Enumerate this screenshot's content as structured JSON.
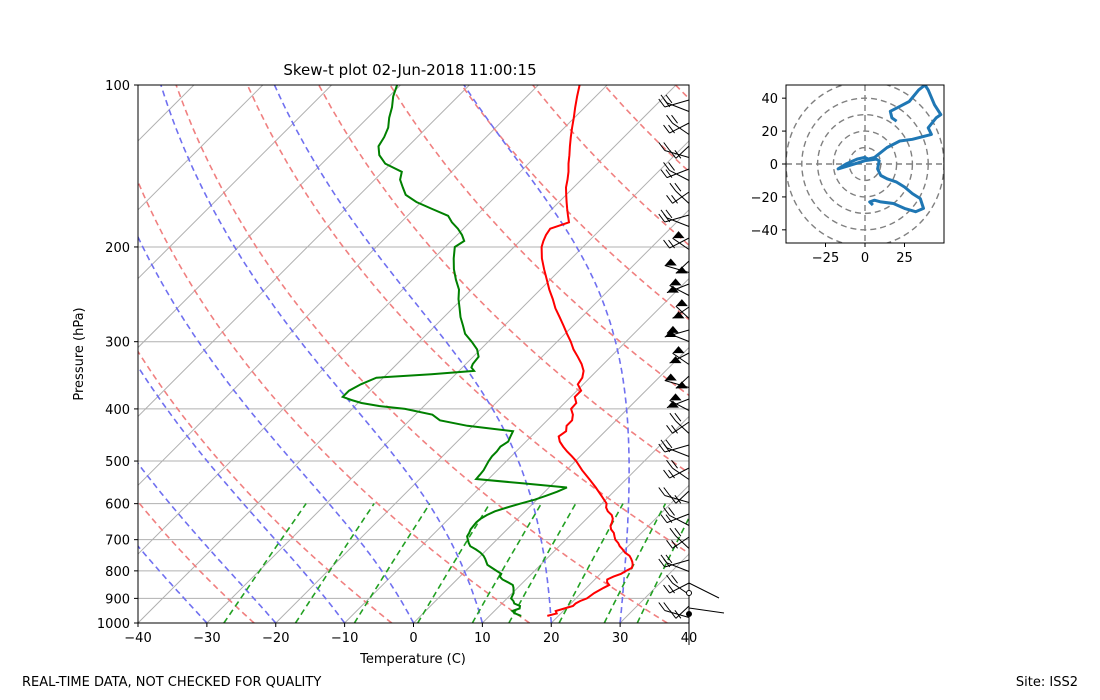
{
  "chart_data": [
    {
      "type": "line",
      "subtype": "skew-t log-p diagram",
      "title": "Skew-t plot 02-Jun-2018 11:00:15",
      "xlabel": "Temperature (C)",
      "ylabel": "Pressure (hPa)",
      "xlim": [
        -40,
        40
      ],
      "ylim": [
        1000,
        100
      ],
      "y_scale": "log",
      "x_ticks": [
        "−40",
        "−30",
        "−20",
        "−10",
        "0",
        "10",
        "20",
        "30",
        "40"
      ],
      "y_ticks": [
        "100",
        "200",
        "300",
        "400",
        "500",
        "600",
        "700",
        "800",
        "900",
        "1000"
      ],
      "grid": true,
      "series": [
        {
          "color": "#ff0000",
          "p": [
            970,
            960,
            950,
            940,
            930,
            920,
            910,
            900,
            880,
            860,
            850,
            840,
            830,
            820,
            810,
            800,
            790,
            780,
            770,
            760,
            750,
            740,
            730,
            720,
            710,
            700,
            690,
            680,
            670,
            660,
            650,
            640,
            630,
            620,
            610,
            600,
            580,
            560,
            540,
            520,
            500,
            490,
            480,
            470,
            460,
            450,
            440,
            430,
            420,
            410,
            400,
            390,
            380,
            370,
            360,
            350,
            340,
            330,
            320,
            310,
            300,
            290,
            280,
            270,
            260,
            250,
            240,
            230,
            220,
            210,
            200,
            195,
            190,
            185,
            180,
            175,
            170,
            165,
            160,
            155,
            150,
            145,
            140,
            135,
            130,
            125,
            120,
            115,
            110,
            105,
            100
          ],
          "t": [
            18.4,
            19.4,
            18.9,
            19.8,
            20.7,
            20.7,
            21.0,
            21.6,
            21.9,
            22.5,
            22.9,
            22.2,
            21.8,
            22.3,
            23.0,
            23.3,
            23.7,
            23.4,
            22.9,
            22.3,
            21.6,
            20.5,
            19.7,
            18.8,
            18.1,
            17.2,
            16.6,
            16.0,
            15.1,
            14.5,
            14.2,
            13.8,
            13.1,
            12.0,
            11.2,
            10.7,
            8.8,
            6.8,
            4.6,
            2.3,
            0.1,
            -1.2,
            -2.6,
            -3.9,
            -5.1,
            -6.0,
            -5.7,
            -6.4,
            -6.4,
            -7.1,
            -8.2,
            -8.3,
            -9.4,
            -9.4,
            -10.8,
            -11.1,
            -11.9,
            -13.2,
            -14.8,
            -16.5,
            -18.0,
            -19.7,
            -21.4,
            -23.2,
            -25.1,
            -26.8,
            -28.7,
            -30.5,
            -32.4,
            -34.3,
            -36.0,
            -36.6,
            -37.1,
            -37.4,
            -35.6,
            -36.7,
            -37.8,
            -38.9,
            -40.0,
            -41.1,
            -42.0,
            -43.0,
            -44.2,
            -45.3,
            -46.5,
            -47.7,
            -48.9,
            -50.1,
            -51.4,
            -52.7,
            -54.0
          ]
        },
        {
          "color": "#008000",
          "p": [
            970,
            960,
            950,
            940,
            930,
            920,
            910,
            900,
            880,
            860,
            850,
            840,
            830,
            820,
            810,
            800,
            790,
            780,
            770,
            760,
            750,
            740,
            730,
            720,
            710,
            700,
            690,
            680,
            670,
            660,
            650,
            640,
            630,
            620,
            610,
            600,
            590,
            580,
            570,
            560,
            550,
            540,
            530,
            520,
            510,
            500,
            490,
            480,
            470,
            460,
            450,
            440,
            430,
            420,
            410,
            400,
            395,
            390,
            385,
            380,
            370,
            360,
            350,
            345,
            340,
            335,
            330,
            320,
            310,
            300,
            290,
            280,
            270,
            260,
            250,
            240,
            230,
            220,
            210,
            200,
            195,
            190,
            185,
            180,
            175,
            170,
            165,
            160,
            155,
            150,
            145,
            140,
            135,
            130,
            125,
            120,
            115,
            110,
            105,
            100
          ],
          "t": [
            14.6,
            13.4,
            12.6,
            13.3,
            13.0,
            11.8,
            11.3,
            10.6,
            10.2,
            9.4,
            8.9,
            7.8,
            6.6,
            5.8,
            5.6,
            4.5,
            3.4,
            2.3,
            1.7,
            1.1,
            0.4,
            -0.5,
            -1.6,
            -2.9,
            -3.6,
            -4.2,
            -4.8,
            -5.0,
            -5.3,
            -5.4,
            -5.5,
            -5.4,
            -5.0,
            -4.4,
            -3.2,
            -1.8,
            -0.3,
            0.8,
            1.8,
            2.6,
            -4.5,
            -11.8,
            -11.9,
            -12.0,
            -12.3,
            -12.6,
            -12.8,
            -12.8,
            -13.0,
            -12.6,
            -13.0,
            -13.4,
            -20.8,
            -25.6,
            -27.5,
            -32.3,
            -36.5,
            -39.5,
            -41.4,
            -43.1,
            -43.1,
            -42.3,
            -41.0,
            -33.5,
            -27.8,
            -28.7,
            -29.0,
            -29.2,
            -30.5,
            -32.4,
            -34.5,
            -36.0,
            -37.6,
            -39.0,
            -40.5,
            -41.8,
            -43.7,
            -45.5,
            -47.1,
            -48.6,
            -48.1,
            -49.3,
            -50.8,
            -52.6,
            -54.1,
            -57.4,
            -60.7,
            -63.3,
            -64.8,
            -66.3,
            -67.2,
            -70.8,
            -72.9,
            -74.3,
            -74.8,
            -75.6,
            -76.9,
            -78.0,
            -79.4,
            -80.5
          ]
        }
      ],
      "dry_adiabats_theta_K": [
        250,
        270,
        290,
        310,
        330,
        350,
        370,
        390,
        410,
        430,
        450
      ],
      "moist_adiabats_start_C": [
        -30,
        -20,
        -10,
        0,
        10,
        20,
        30,
        40
      ],
      "mixing_ratio_lines_gkg": [
        0.4,
        1,
        2,
        4,
        7,
        10,
        16,
        24,
        32
      ],
      "styles": {
        "isotherms": "#b0b0b0",
        "dry_adiabats": "#f08080",
        "moist_adiabats": "#7070f0",
        "mixing_ratio": "#22a022"
      },
      "wind_barbs": {
        "description": "wind barbs on right edge at x = 40 C",
        "color": "#000000"
      }
    },
    {
      "type": "line",
      "subtype": "hodograph",
      "x_ticks": [
        "−25",
        "0",
        "25"
      ],
      "y_ticks": [
        "40",
        "20",
        "0",
        "−20",
        "−40"
      ],
      "xlim": [
        -50,
        50
      ],
      "ylim": [
        -48,
        48
      ],
      "rings": [
        10,
        20,
        30,
        40,
        50
      ],
      "series": [
        {
          "color": "#1f77b4",
          "u": [
            5,
            3,
            6,
            10,
            18,
            25,
            32,
            37,
            35,
            30,
            25,
            20,
            14,
            10,
            8,
            9,
            7,
            0,
            -10,
            -17,
            -12,
            -5,
            0,
            2,
            6,
            14,
            22,
            30,
            42,
            40,
            45,
            48,
            44,
            40,
            38,
            34,
            28,
            22,
            16,
            17,
            20
          ],
          "v": [
            -25,
            -23,
            -22,
            -23,
            -24,
            -27,
            -29,
            -27,
            -21,
            -18,
            -14,
            -11,
            -9,
            -7,
            -3,
            2,
            3,
            2,
            -1,
            -3,
            0,
            3,
            4,
            3,
            4,
            10,
            14,
            15,
            18,
            22,
            28,
            30,
            36,
            45,
            48,
            45,
            38,
            35,
            32,
            28,
            26
          ]
        }
      ]
    }
  ],
  "footer": {
    "left": "REAL-TIME DATA, NOT CHECKED FOR QUALITY",
    "right": "Site: ISS2"
  }
}
